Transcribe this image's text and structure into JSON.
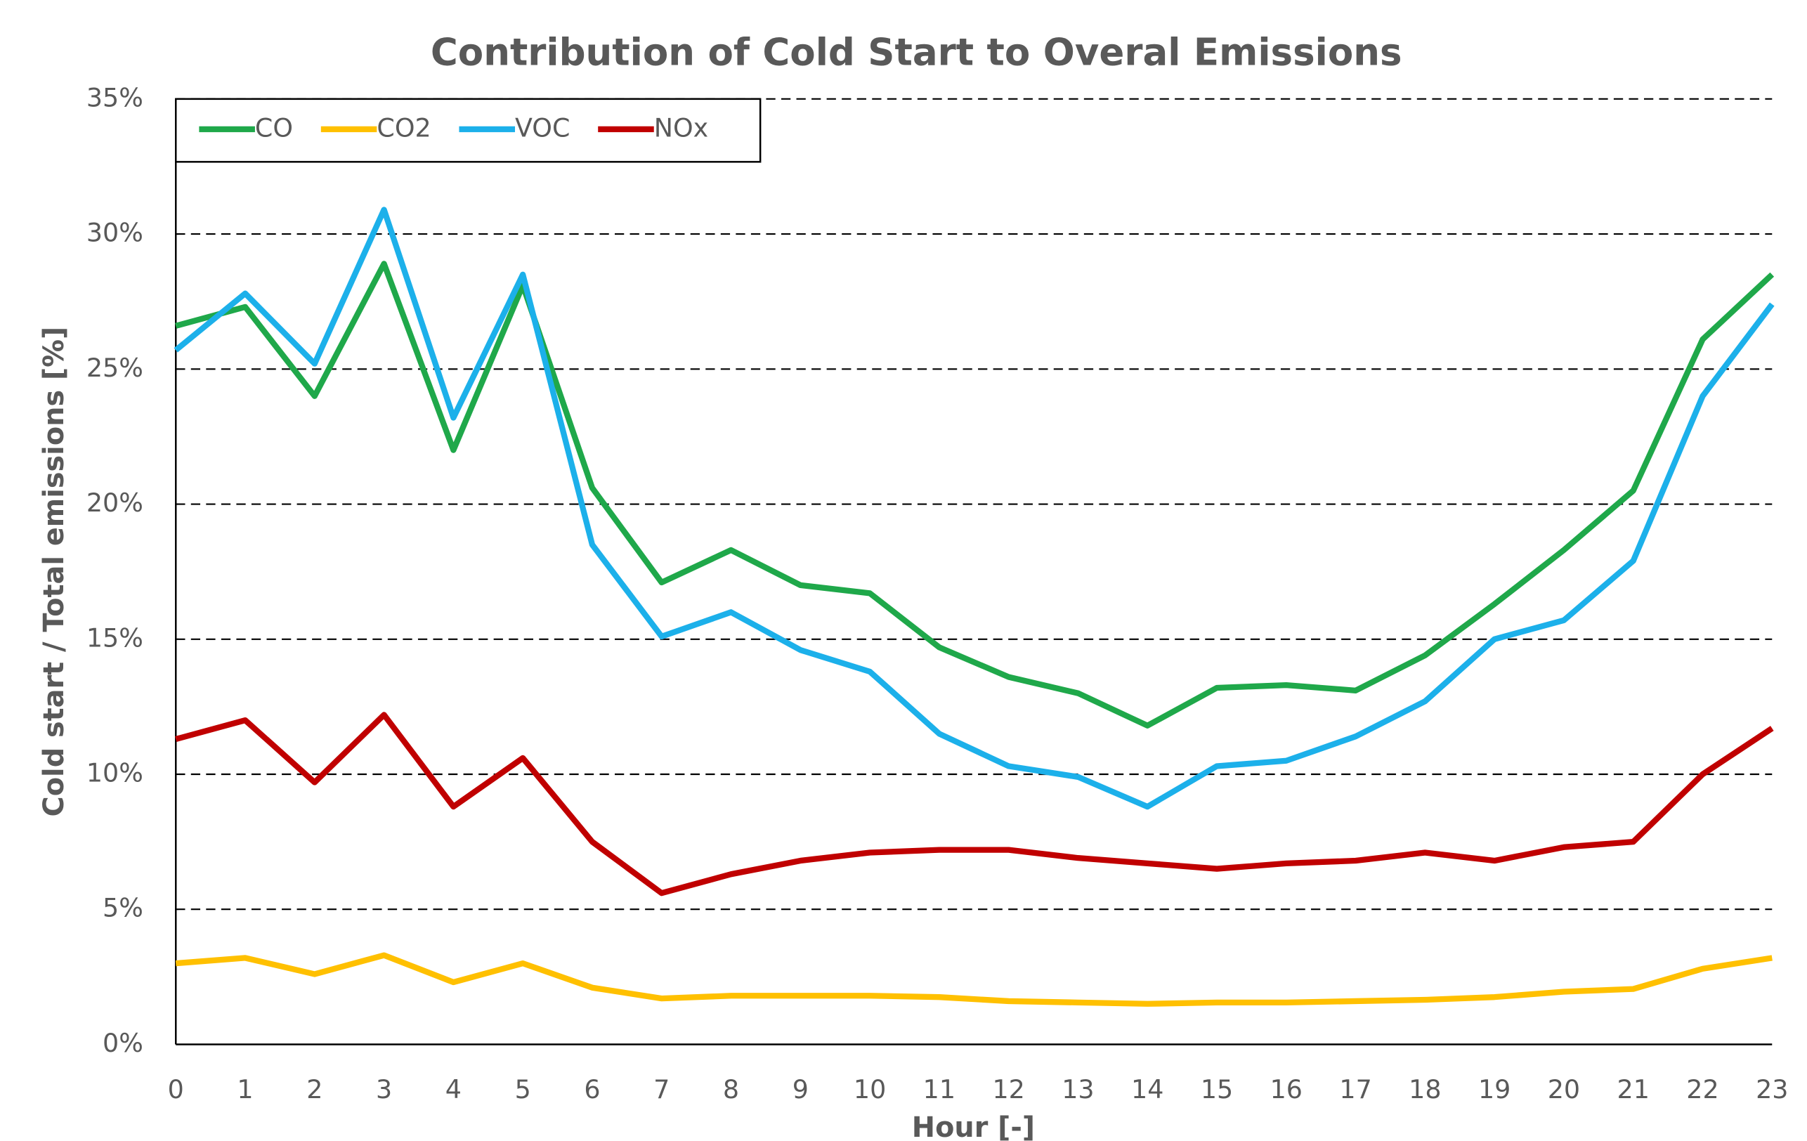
{
  "chart_data": {
    "type": "line",
    "title": "Contribution of Cold Start to Overal Emissions",
    "x_label": "Hour [-]",
    "y_label": "Cold start / Total emissions [%]",
    "x": [
      0,
      1,
      2,
      3,
      4,
      5,
      6,
      7,
      8,
      9,
      10,
      11,
      12,
      13,
      14,
      15,
      16,
      17,
      18,
      19,
      20,
      21,
      22,
      23
    ],
    "xlim": [
      0,
      23
    ],
    "xticks": [
      0,
      1,
      2,
      3,
      4,
      5,
      6,
      7,
      8,
      9,
      10,
      11,
      12,
      13,
      14,
      15,
      16,
      17,
      18,
      19,
      20,
      21,
      22,
      23
    ],
    "ylim": [
      0,
      35
    ],
    "yticks": [
      {
        "value": 0,
        "label": "0%"
      },
      {
        "value": 5,
        "label": "5%"
      },
      {
        "value": 10,
        "label": "10%"
      },
      {
        "value": 15,
        "label": "15%"
      },
      {
        "value": 20,
        "label": "20%"
      },
      {
        "value": 25,
        "label": "25%"
      },
      {
        "value": 30,
        "label": "30%"
      },
      {
        "value": 35,
        "label": "35%"
      }
    ],
    "grid": true,
    "legend": "top-left",
    "series": [
      {
        "name": "CO",
        "color": "#1fa84a",
        "values": [
          26.6,
          27.3,
          24.0,
          28.9,
          22.0,
          28.1,
          20.6,
          17.1,
          18.3,
          17.0,
          16.7,
          14.7,
          13.6,
          13.0,
          11.8,
          13.2,
          13.3,
          13.1,
          14.4,
          16.3,
          18.3,
          20.5,
          26.1,
          28.5
        ]
      },
      {
        "name": "CO2",
        "color": "#ffc000",
        "values": [
          3.0,
          3.2,
          2.6,
          3.3,
          2.3,
          3.0,
          2.1,
          1.7,
          1.8,
          1.8,
          1.8,
          1.75,
          1.6,
          1.55,
          1.5,
          1.55,
          1.55,
          1.6,
          1.65,
          1.75,
          1.95,
          2.05,
          2.8,
          3.2
        ]
      },
      {
        "name": "VOC",
        "color": "#1cb0ea",
        "values": [
          25.7,
          27.8,
          25.2,
          30.9,
          23.2,
          28.5,
          18.5,
          15.1,
          16.0,
          14.6,
          13.8,
          11.5,
          10.3,
          9.9,
          8.8,
          10.3,
          10.5,
          11.4,
          12.7,
          15.0,
          15.7,
          17.9,
          24.0,
          27.4
        ]
      },
      {
        "name": "NOx",
        "color": "#c00000",
        "values": [
          11.3,
          12.0,
          9.7,
          12.2,
          8.8,
          10.6,
          7.5,
          5.6,
          6.3,
          6.8,
          7.1,
          7.2,
          7.2,
          6.9,
          6.7,
          6.5,
          6.7,
          6.8,
          7.1,
          6.8,
          7.3,
          7.5,
          10.0,
          11.7
        ]
      }
    ]
  }
}
